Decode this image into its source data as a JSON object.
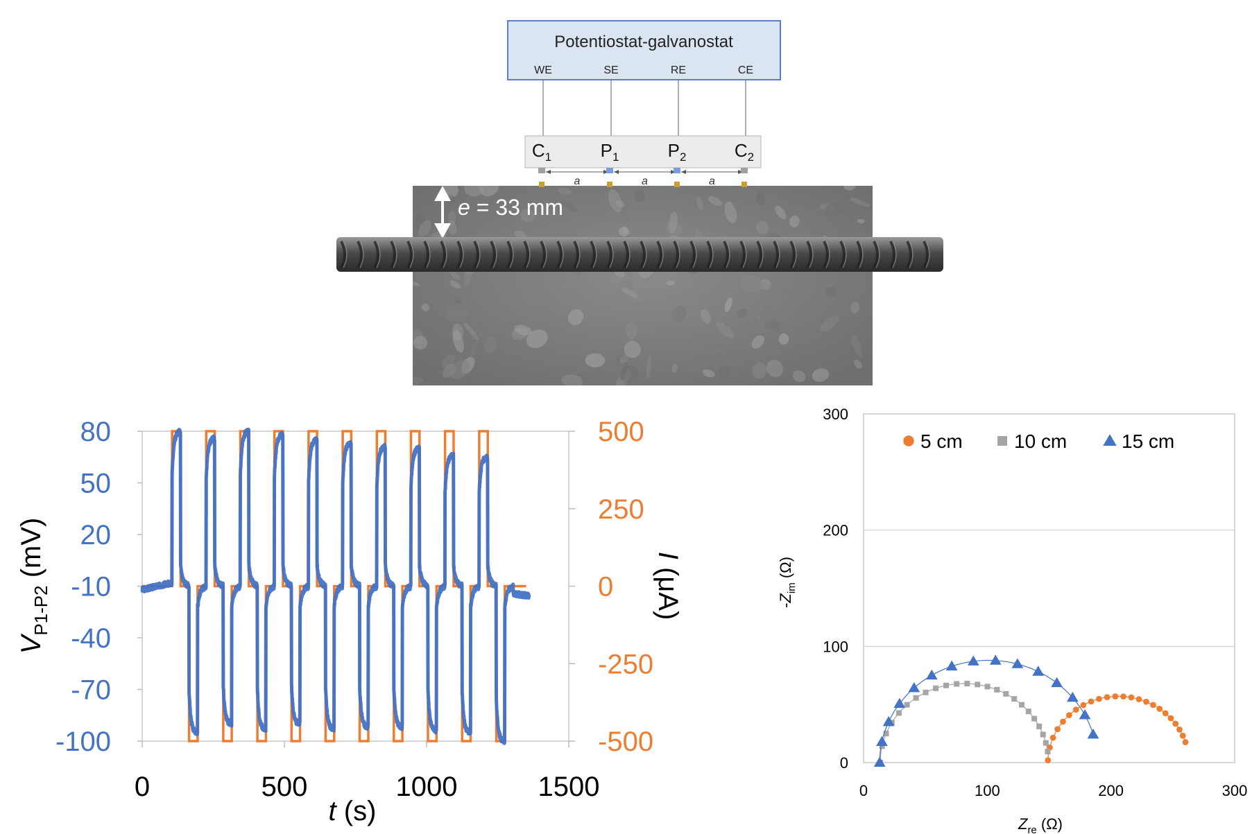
{
  "setup": {
    "instrument_label": "Potentiostat-galvanostat",
    "terminals": [
      "WE",
      "SE",
      "RE",
      "CE"
    ],
    "electrodes": [
      {
        "main": "C",
        "sub": "1"
      },
      {
        "main": "P",
        "sub": "1"
      },
      {
        "main": "P",
        "sub": "2"
      },
      {
        "main": "C",
        "sub": "2"
      }
    ],
    "spacing_label": "a",
    "cover_label_var": "e",
    "cover_label_value": " = 33 mm",
    "colors": {
      "box_fill": "#dbe5f1",
      "box_stroke": "#5b7fc4",
      "concrete": "#7d7d7d",
      "rebar": "#444444"
    }
  },
  "chart_data": [
    {
      "type": "line",
      "title": "",
      "xlabel": {
        "var": "t",
        "unit": " (s)"
      },
      "ylabel_left": {
        "var": "V",
        "sub": "P1-P2",
        "unit": " (mV)"
      },
      "ylabel_right": {
        "var": "I",
        "unit": " (μA)"
      },
      "xlim": [
        0,
        1500
      ],
      "ylim_left": [
        -100,
        80
      ],
      "ylim_right": [
        -500,
        500
      ],
      "xticks": [
        "0",
        "500",
        "1000",
        "1500"
      ],
      "yticks_left": [
        "80",
        "50",
        "20",
        "-10",
        "-40",
        "-70",
        "-100"
      ],
      "yticks_right": [
        "500",
        "250",
        "0",
        "-250",
        "-500"
      ],
      "colors": {
        "voltage": "#4472c4",
        "current": "#ed7d31"
      },
      "current_pulses": [
        {
          "start": 105,
          "end": 135,
          "level": 500
        },
        {
          "start": 165,
          "end": 195,
          "level": -500
        },
        {
          "start": 225,
          "end": 255,
          "level": 500
        },
        {
          "start": 285,
          "end": 315,
          "level": -500
        },
        {
          "start": 345,
          "end": 375,
          "level": 500
        },
        {
          "start": 405,
          "end": 435,
          "level": -500
        },
        {
          "start": 465,
          "end": 495,
          "level": 500
        },
        {
          "start": 525,
          "end": 555,
          "level": -500
        },
        {
          "start": 585,
          "end": 615,
          "level": 500
        },
        {
          "start": 645,
          "end": 675,
          "level": -500
        },
        {
          "start": 705,
          "end": 735,
          "level": 500
        },
        {
          "start": 765,
          "end": 795,
          "level": -500
        },
        {
          "start": 825,
          "end": 855,
          "level": 500
        },
        {
          "start": 885,
          "end": 915,
          "level": -500
        },
        {
          "start": 945,
          "end": 975,
          "level": 500
        },
        {
          "start": 1005,
          "end": 1035,
          "level": -500
        },
        {
          "start": 1065,
          "end": 1095,
          "level": 500
        },
        {
          "start": 1125,
          "end": 1155,
          "level": -500
        },
        {
          "start": 1185,
          "end": 1215,
          "level": 500
        },
        {
          "start": 1245,
          "end": 1275,
          "level": -500
        }
      ],
      "current_end": 1350,
      "voltage_baseline": -10,
      "voltage_pos_peaks": [
        80,
        76,
        80,
        78,
        75,
        73,
        71,
        70,
        66,
        65
      ],
      "voltage_neg_peaks": [
        -95,
        -90,
        -93,
        -90,
        -93,
        -92,
        -92,
        -94,
        -95,
        -100
      ],
      "voltage_end": 1360
    },
    {
      "type": "scatter",
      "title": "",
      "xlabel": {
        "var": "Z",
        "sub": "re",
        "unit": " (Ω)"
      },
      "ylabel": {
        "pre": "-",
        "var": "Z",
        "sub": "im",
        "unit": " (Ω)"
      },
      "xlim": [
        0,
        300
      ],
      "ylim": [
        0,
        300
      ],
      "xticks": [
        "0",
        "100",
        "200",
        "300"
      ],
      "yticks": [
        "0",
        "100",
        "200",
        "300"
      ],
      "grid": "horizontal",
      "legend": "top",
      "series": [
        {
          "name": "5 cm",
          "marker": "circle",
          "color": "#ed7d31",
          "center": 206,
          "radius": 57,
          "start_deg": 178,
          "end_deg": 18
        },
        {
          "name": "10 cm",
          "marker": "square",
          "color": "#a5a5a5",
          "center": 81.5,
          "radius": 68,
          "start_deg": 180,
          "end_deg": 8
        },
        {
          "name": "15 cm",
          "marker": "triangle",
          "color": "#4472c4",
          "center": 101,
          "radius": 88,
          "start_deg": 180,
          "end_deg": 16
        }
      ]
    }
  ]
}
